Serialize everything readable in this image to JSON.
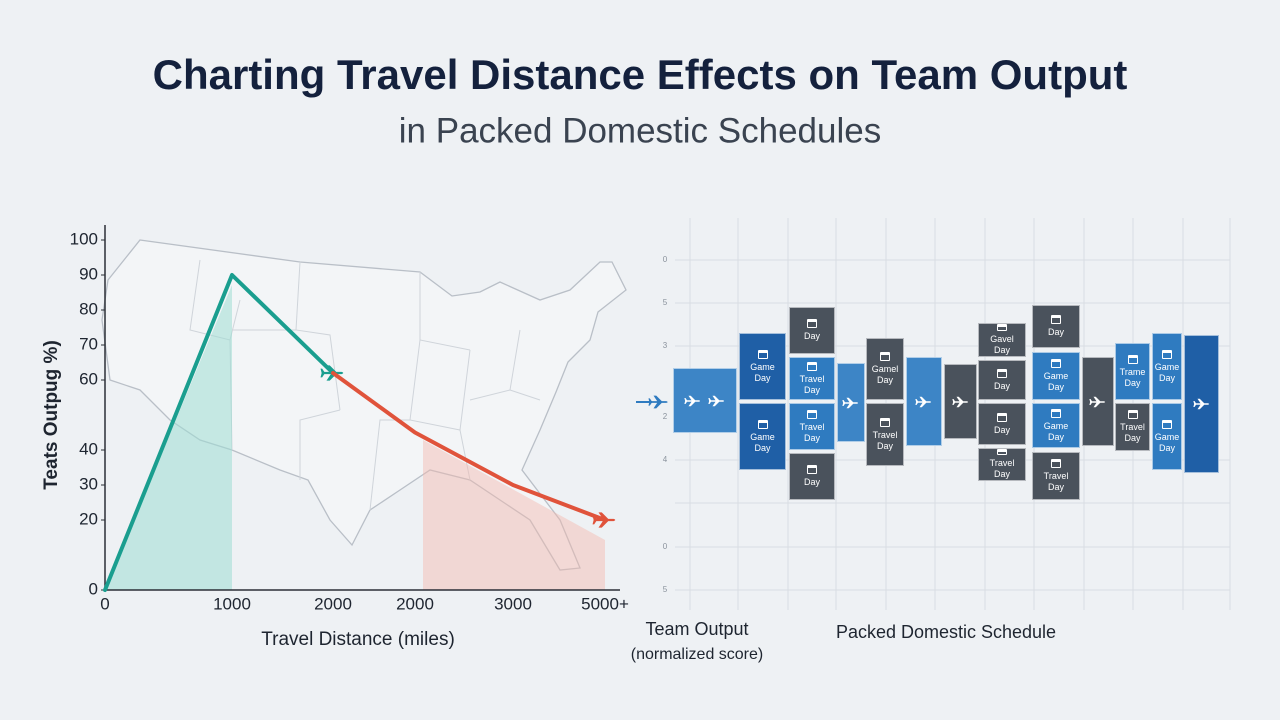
{
  "title": "Charting Travel Distance Effects on Team Output",
  "subtitle": "in Packed Domestic Schedules",
  "chart_data": {
    "type": "line",
    "x_label": "Travel Distance (miles)",
    "y_label": "Teats Outpug %)",
    "categories": [
      "0",
      "1000",
      "2000",
      "2000",
      "3000",
      "5000+"
    ],
    "series": [
      {
        "color": "#1a9e8f",
        "values": [
          0,
          90,
          62,
          null,
          null,
          null
        ]
      },
      {
        "color": "#e0533b",
        "values": [
          null,
          null,
          62,
          45,
          30,
          20
        ]
      }
    ],
    "ylim": [
      0,
      100
    ],
    "yticks": [
      0,
      20,
      30,
      40,
      60,
      70,
      80,
      90,
      100
    ]
  },
  "schedule": {
    "output_label": "Team Output",
    "output_note": "(normalized score)",
    "label": "Packed Domestic Schedule",
    "axis_labels": [
      "0",
      "5",
      "3",
      "2",
      "4",
      "0",
      "5"
    ],
    "columns": [
      {
        "blocks": [
          {
            "color": "#3d85c6"
          }
        ]
      },
      {
        "blocks": [
          {
            "text": "Game Day",
            "color": "#1f5fa6"
          },
          {
            "text": "Game Day",
            "color": "#1f5fa6"
          }
        ]
      },
      {
        "blocks": [
          {
            "text": "Day",
            "color": "#4a525c"
          },
          {
            "text": "Travel Day",
            "color": "#2f7bc0"
          },
          {
            "text": "Travel Day",
            "color": "#2f7bc0"
          },
          {
            "text": "Day",
            "color": "#4a525c"
          }
        ]
      },
      {
        "blocks": [
          {
            "color": "#3d85c6"
          }
        ]
      },
      {
        "blocks": [
          {
            "text": "Gamel Day",
            "color": "#4a525c"
          },
          {
            "text": "Travel Day",
            "color": "#4a525c"
          }
        ]
      },
      {
        "blocks": [
          {
            "color": "#3d85c6"
          }
        ]
      },
      {
        "blocks": [
          {
            "color": "#4a525c"
          }
        ]
      },
      {
        "blocks": [
          {
            "text": "Gavel Day",
            "color": "#4a525c"
          },
          {
            "text": "Day",
            "color": "#4a525c"
          },
          {
            "text": "Day",
            "color": "#4a525c"
          },
          {
            "text": "Travel Day",
            "color": "#4a525c"
          }
        ]
      },
      {
        "blocks": [
          {
            "text": "Day",
            "color": "#4a525c"
          },
          {
            "text": "Game Day",
            "color": "#2f7bc0"
          },
          {
            "text": "Game Day",
            "color": "#2f7bc0"
          },
          {
            "text": "Travel Day",
            "color": "#4a525c"
          }
        ]
      },
      {
        "blocks": [
          {
            "color": "#4a525c"
          }
        ]
      },
      {
        "blocks": [
          {
            "text": "Trame Day",
            "color": "#2f7bc0"
          },
          {
            "text": "Travel Day",
            "color": "#4a525c"
          }
        ]
      },
      {
        "blocks": [
          {
            "text": "Game Day",
            "color": "#2f7bc0"
          },
          {
            "text": "Game Day",
            "color": "#2f7bc0"
          }
        ]
      },
      {
        "blocks": [
          {
            "color": "#1f5fa6"
          }
        ]
      }
    ]
  }
}
